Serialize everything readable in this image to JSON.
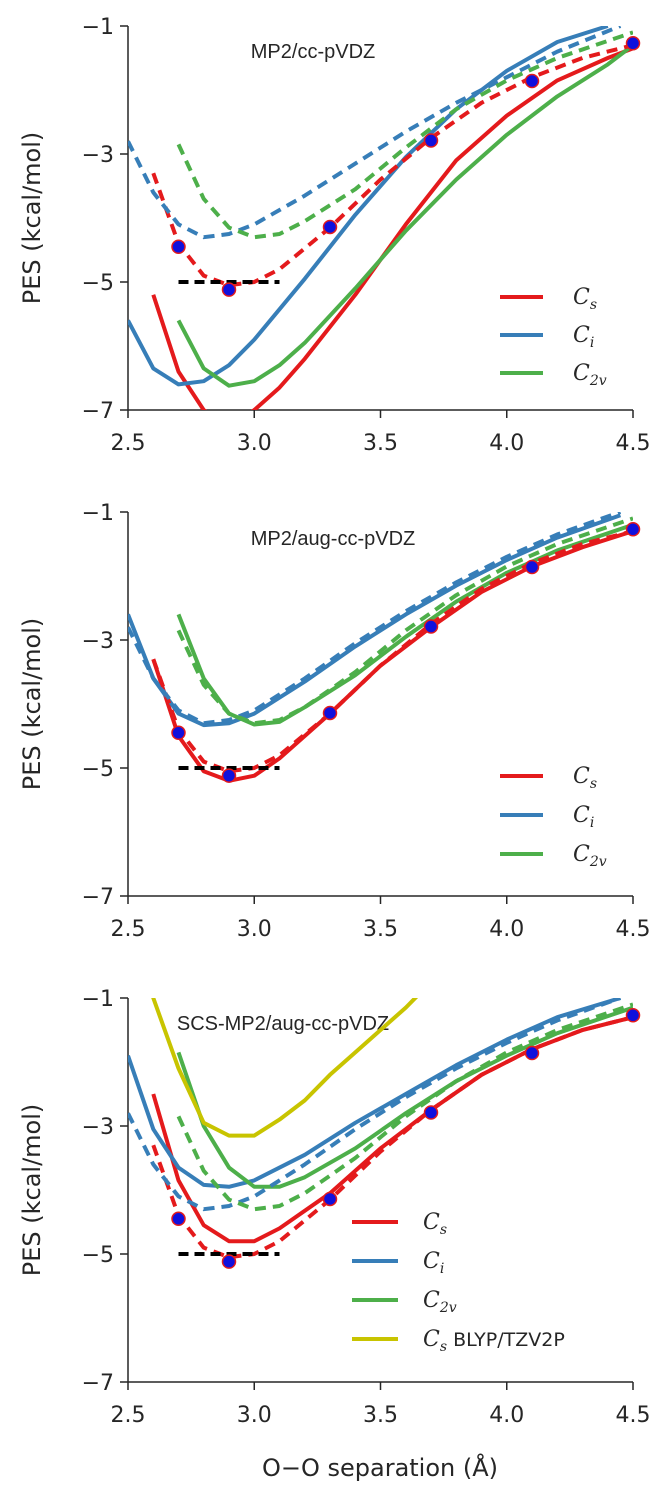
{
  "chart_data": [
    {
      "type": "line",
      "title": "MP2/cc-pVDZ",
      "ylabel": "PES  (kcal/mol)",
      "xlabel": "",
      "xlim": [
        2.5,
        4.5
      ],
      "ylim": [
        -7,
        -1
      ],
      "xticks": [
        "2.5",
        "3.0",
        "3.5",
        "4.0",
        "4.5"
      ],
      "yticks": [
        "-1",
        "-3",
        "-5",
        "-7"
      ],
      "legend_position": "lower-right",
      "series": [
        {
          "name": "C_s",
          "color": "#e41a1c",
          "style": "solid",
          "x": [
            2.6,
            2.7,
            2.8,
            2.9,
            3.0,
            3.1,
            3.2,
            3.4,
            3.6,
            3.8,
            4.0,
            4.2,
            4.4,
            4.5
          ],
          "y": [
            -5.2,
            -6.4,
            -7.0,
            -7.3,
            -7.0,
            -6.65,
            -6.2,
            -5.2,
            -4.1,
            -3.1,
            -2.4,
            -1.85,
            -1.5,
            -1.35
          ]
        },
        {
          "name": "C_i",
          "color": "#377eb8",
          "style": "solid",
          "x": [
            2.5,
            2.6,
            2.7,
            2.8,
            2.9,
            3.0,
            3.2,
            3.4,
            3.6,
            3.8,
            4.0,
            4.2,
            4.4
          ],
          "y": [
            -5.6,
            -6.35,
            -6.6,
            -6.55,
            -6.3,
            -5.9,
            -4.95,
            -3.95,
            -3.05,
            -2.3,
            -1.7,
            -1.25,
            -1.0
          ]
        },
        {
          "name": "C_2v",
          "color": "#4daf4a",
          "style": "solid",
          "x": [
            2.7,
            2.8,
            2.9,
            3.0,
            3.1,
            3.2,
            3.4,
            3.6,
            3.8,
            4.0,
            4.2,
            4.4,
            4.5
          ],
          "y": [
            -5.6,
            -6.35,
            -6.62,
            -6.55,
            -6.3,
            -5.95,
            -5.1,
            -4.2,
            -3.4,
            -2.7,
            -2.1,
            -1.6,
            -1.3
          ]
        },
        {
          "name": "C_s MP2 dashed",
          "color": "#e41a1c",
          "style": "dashed",
          "x": [
            2.6,
            2.7,
            2.8,
            2.9,
            3.0,
            3.1,
            3.3,
            3.5,
            3.7,
            3.9,
            4.1,
            4.3,
            4.5
          ],
          "y": [
            -3.3,
            -4.4,
            -4.9,
            -5.05,
            -5.0,
            -4.8,
            -4.15,
            -3.4,
            -2.75,
            -2.2,
            -1.8,
            -1.5,
            -1.3
          ]
        },
        {
          "name": "C_i MP2 dashed",
          "color": "#377eb8",
          "style": "dashed",
          "x": [
            2.5,
            2.6,
            2.7,
            2.8,
            2.9,
            3.0,
            3.2,
            3.4,
            3.6,
            3.8,
            4.0,
            4.2,
            4.45
          ],
          "y": [
            -2.8,
            -3.6,
            -4.1,
            -4.3,
            -4.25,
            -4.1,
            -3.65,
            -3.15,
            -2.65,
            -2.2,
            -1.8,
            -1.4,
            -1.0
          ]
        },
        {
          "name": "C_2v MP2 dashed",
          "color": "#4daf4a",
          "style": "dashed",
          "x": [
            2.7,
            2.8,
            2.9,
            3.0,
            3.1,
            3.2,
            3.4,
            3.6,
            3.8,
            4.0,
            4.2,
            4.5
          ],
          "y": [
            -2.85,
            -3.7,
            -4.15,
            -4.3,
            -4.25,
            -4.05,
            -3.55,
            -2.9,
            -2.3,
            -1.85,
            -1.5,
            -1.1
          ]
        }
      ],
      "markers": {
        "x": [
          2.7,
          2.9,
          3.3,
          3.7,
          4.1,
          4.5
        ],
        "y": [
          -4.45,
          -5.12,
          -4.14,
          -2.79,
          -1.86,
          -1.27
        ]
      },
      "reference_line": {
        "x": [
          2.7,
          3.1
        ],
        "y": -5.0
      }
    },
    {
      "type": "line",
      "title": "MP2/aug-cc-pVDZ",
      "ylabel": "PES  (kcal/mol)",
      "xlabel": "",
      "xlim": [
        2.5,
        4.5
      ],
      "ylim": [
        -7,
        -1
      ],
      "xticks": [
        "2.5",
        "3.0",
        "3.5",
        "4.0",
        "4.5"
      ],
      "yticks": [
        "-1",
        "-3",
        "-5",
        "-7"
      ],
      "legend_position": "lower-right",
      "series": [
        {
          "name": "C_s",
          "color": "#e41a1c",
          "style": "solid",
          "x": [
            2.6,
            2.7,
            2.8,
            2.9,
            3.0,
            3.1,
            3.3,
            3.5,
            3.7,
            3.9,
            4.1,
            4.3,
            4.5
          ],
          "y": [
            -3.3,
            -4.5,
            -5.05,
            -5.2,
            -5.12,
            -4.85,
            -4.15,
            -3.4,
            -2.8,
            -2.25,
            -1.85,
            -1.55,
            -1.3
          ]
        },
        {
          "name": "C_i",
          "color": "#377eb8",
          "style": "solid",
          "x": [
            2.5,
            2.6,
            2.7,
            2.8,
            2.9,
            3.0,
            3.2,
            3.4,
            3.6,
            3.8,
            4.0,
            4.2,
            4.45
          ],
          "y": [
            -2.6,
            -3.6,
            -4.15,
            -4.33,
            -4.3,
            -4.15,
            -3.65,
            -3.1,
            -2.6,
            -2.15,
            -1.75,
            -1.4,
            -1.05
          ]
        },
        {
          "name": "C_2v",
          "color": "#4daf4a",
          "style": "solid",
          "x": [
            2.7,
            2.8,
            2.9,
            3.0,
            3.1,
            3.2,
            3.4,
            3.6,
            3.8,
            4.0,
            4.2,
            4.5
          ],
          "y": [
            -2.6,
            -3.6,
            -4.15,
            -4.32,
            -4.28,
            -4.05,
            -3.55,
            -2.95,
            -2.4,
            -1.95,
            -1.6,
            -1.2
          ]
        },
        {
          "name": "C_s dashed",
          "color": "#e41a1c",
          "style": "dashed",
          "x": [
            2.6,
            2.7,
            2.8,
            2.9,
            3.0,
            3.1,
            3.3,
            3.5,
            3.7,
            3.9,
            4.1,
            4.3,
            4.5
          ],
          "y": [
            -3.3,
            -4.4,
            -4.9,
            -5.05,
            -5.0,
            -4.8,
            -4.15,
            -3.4,
            -2.75,
            -2.2,
            -1.8,
            -1.5,
            -1.3
          ]
        },
        {
          "name": "C_i dashed",
          "color": "#377eb8",
          "style": "dashed",
          "x": [
            2.5,
            2.6,
            2.7,
            2.8,
            2.9,
            3.0,
            3.2,
            3.4,
            3.6,
            3.8,
            4.0,
            4.2,
            4.45
          ],
          "y": [
            -2.8,
            -3.6,
            -4.1,
            -4.3,
            -4.25,
            -4.1,
            -3.6,
            -3.05,
            -2.55,
            -2.1,
            -1.7,
            -1.35,
            -1.0
          ]
        },
        {
          "name": "C_2v dashed",
          "color": "#4daf4a",
          "style": "dashed",
          "x": [
            2.7,
            2.8,
            2.9,
            3.0,
            3.1,
            3.2,
            3.4,
            3.6,
            3.8,
            4.0,
            4.2,
            4.5
          ],
          "y": [
            -2.85,
            -3.7,
            -4.15,
            -4.3,
            -4.25,
            -4.05,
            -3.5,
            -2.85,
            -2.3,
            -1.85,
            -1.5,
            -1.1
          ]
        }
      ],
      "markers": {
        "x": [
          2.7,
          2.9,
          3.3,
          3.7,
          4.1,
          4.5
        ],
        "y": [
          -4.45,
          -5.12,
          -4.14,
          -2.79,
          -1.86,
          -1.27
        ]
      },
      "reference_line": {
        "x": [
          2.7,
          3.1
        ],
        "y": -5.0
      }
    },
    {
      "type": "line",
      "title": "SCS-MP2/aug-cc-pVDZ",
      "ylabel": "PES  (kcal/mol)",
      "xlabel": "O−O  separation  (Å)",
      "xlim": [
        2.5,
        4.5
      ],
      "ylim": [
        -7,
        -1
      ],
      "xticks": [
        "2.5",
        "3.0",
        "3.5",
        "4.0",
        "4.5"
      ],
      "yticks": [
        "-1",
        "-3",
        "-5",
        "-7"
      ],
      "legend_position": "lower-right",
      "series": [
        {
          "name": "C_s",
          "color": "#e41a1c",
          "style": "solid",
          "x": [
            2.6,
            2.7,
            2.8,
            2.9,
            3.0,
            3.1,
            3.3,
            3.5,
            3.7,
            3.9,
            4.1,
            4.3,
            4.5
          ],
          "y": [
            -2.5,
            -3.85,
            -4.55,
            -4.8,
            -4.8,
            -4.6,
            -4.05,
            -3.35,
            -2.75,
            -2.2,
            -1.8,
            -1.5,
            -1.3
          ]
        },
        {
          "name": "C_i",
          "color": "#377eb8",
          "style": "solid",
          "x": [
            2.5,
            2.6,
            2.7,
            2.8,
            2.9,
            3.0,
            3.2,
            3.4,
            3.6,
            3.8,
            4.0,
            4.2,
            4.45
          ],
          "y": [
            -1.9,
            -3.05,
            -3.65,
            -3.92,
            -3.95,
            -3.85,
            -3.45,
            -2.95,
            -2.5,
            -2.05,
            -1.65,
            -1.3,
            -1.0
          ]
        },
        {
          "name": "C_2v",
          "color": "#4daf4a",
          "style": "solid",
          "x": [
            2.7,
            2.8,
            2.9,
            3.0,
            3.1,
            3.2,
            3.4,
            3.6,
            3.8,
            4.0,
            4.2,
            4.5
          ],
          "y": [
            -1.85,
            -3.0,
            -3.65,
            -3.95,
            -3.95,
            -3.8,
            -3.35,
            -2.8,
            -2.3,
            -1.9,
            -1.55,
            -1.15
          ]
        },
        {
          "name": "C_s BLYP/TZV2P",
          "color": "#c8c400",
          "style": "solid",
          "x": [
            2.5,
            2.6,
            2.7,
            2.8,
            2.9,
            3.0,
            3.1,
            3.2,
            3.3,
            3.4,
            3.5,
            3.6,
            3.65
          ],
          "y": [
            0.5,
            -1.0,
            -2.1,
            -2.95,
            -3.15,
            -3.15,
            -2.9,
            -2.6,
            -2.2,
            -1.85,
            -1.5,
            -1.15,
            -0.95
          ]
        },
        {
          "name": "C_s dashed",
          "color": "#e41a1c",
          "style": "dashed",
          "x": [
            2.6,
            2.7,
            2.8,
            2.9,
            3.0,
            3.1,
            3.3,
            3.5,
            3.7,
            3.9,
            4.1,
            4.3,
            4.5
          ],
          "y": [
            -3.3,
            -4.4,
            -4.9,
            -5.05,
            -5.0,
            -4.8,
            -4.15,
            -3.4,
            -2.75,
            -2.2,
            -1.8,
            -1.5,
            -1.3
          ]
        },
        {
          "name": "C_i dashed",
          "color": "#377eb8",
          "style": "dashed",
          "x": [
            2.5,
            2.6,
            2.7,
            2.8,
            2.9,
            3.0,
            3.2,
            3.4,
            3.6,
            3.8,
            4.0,
            4.2,
            4.45
          ],
          "y": [
            -2.8,
            -3.6,
            -4.1,
            -4.3,
            -4.25,
            -4.1,
            -3.6,
            -3.05,
            -2.55,
            -2.1,
            -1.7,
            -1.35,
            -1.0
          ]
        },
        {
          "name": "C_2v dashed",
          "color": "#4daf4a",
          "style": "dashed",
          "x": [
            2.7,
            2.8,
            2.9,
            3.0,
            3.1,
            3.2,
            3.4,
            3.6,
            3.8,
            4.0,
            4.2,
            4.5
          ],
          "y": [
            -2.85,
            -3.7,
            -4.15,
            -4.3,
            -4.25,
            -4.05,
            -3.5,
            -2.85,
            -2.3,
            -1.85,
            -1.5,
            -1.1
          ]
        }
      ],
      "markers": {
        "x": [
          2.7,
          2.9,
          3.3,
          3.7,
          4.1,
          4.5
        ],
        "y": [
          -4.45,
          -5.12,
          -4.14,
          -2.79,
          -1.86,
          -1.27
        ]
      },
      "reference_line": {
        "x": [
          2.7,
          3.1
        ],
        "y": -5.0
      }
    }
  ],
  "legends": [
    [
      {
        "base": "C",
        "sub": "s",
        "extra": "",
        "color": "#e41a1c"
      },
      {
        "base": "C",
        "sub": "i",
        "extra": "",
        "color": "#377eb8"
      },
      {
        "base": "C",
        "sub": "2v",
        "extra": "",
        "color": "#4daf4a"
      }
    ],
    [
      {
        "base": "C",
        "sub": "s",
        "extra": "",
        "color": "#e41a1c"
      },
      {
        "base": "C",
        "sub": "i",
        "extra": "",
        "color": "#377eb8"
      },
      {
        "base": "C",
        "sub": "2v",
        "extra": "",
        "color": "#4daf4a"
      }
    ],
    [
      {
        "base": "C",
        "sub": "s",
        "extra": "",
        "color": "#e41a1c"
      },
      {
        "base": "C",
        "sub": "i",
        "extra": "",
        "color": "#377eb8"
      },
      {
        "base": "C",
        "sub": "2v",
        "extra": "",
        "color": "#4daf4a"
      },
      {
        "base": "C",
        "sub": "s",
        "extra": " BLYP/TZV2P",
        "color": "#c8c400"
      }
    ]
  ],
  "colors": {
    "axis": "#262626",
    "marker_fill": "#1010dd",
    "marker_edge": "#e41a1c",
    "reference": "#000000"
  }
}
